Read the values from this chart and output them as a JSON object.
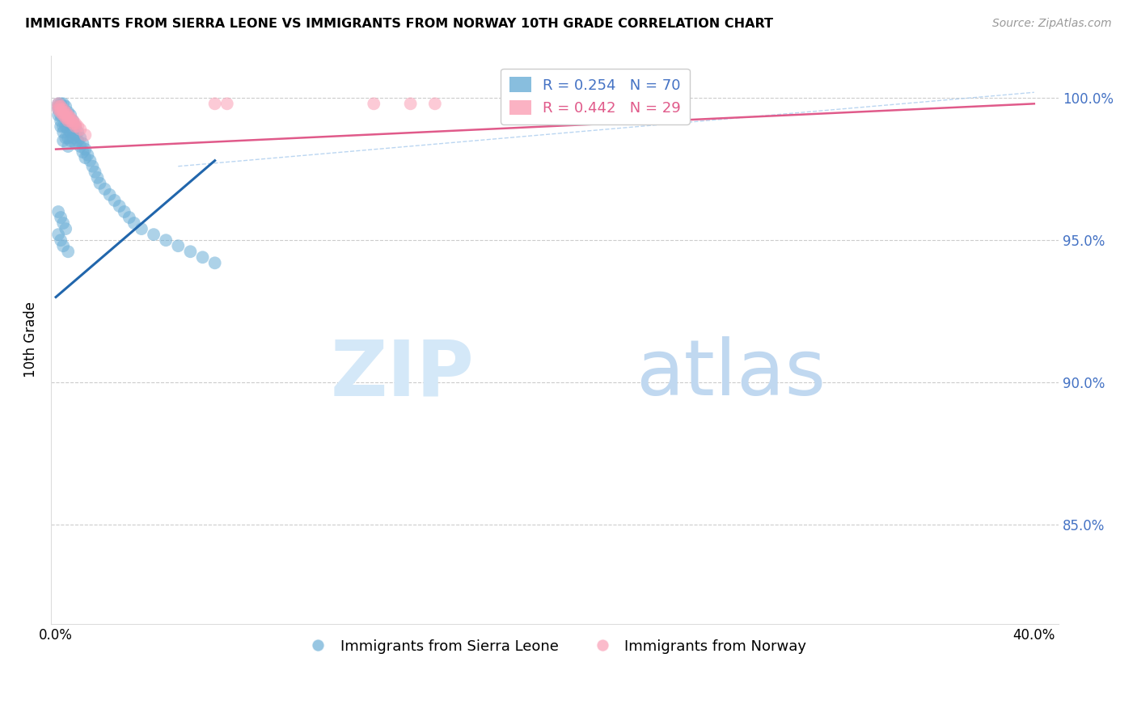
{
  "title": "IMMIGRANTS FROM SIERRA LEONE VS IMMIGRANTS FROM NORWAY 10TH GRADE CORRELATION CHART",
  "source": "Source: ZipAtlas.com",
  "ylabel": "10th Grade",
  "blue_color": "#6baed6",
  "pink_color": "#fa9fb5",
  "blue_line_color": "#2166ac",
  "pink_line_color": "#e05a8a",
  "legend_r1": "R = 0.254",
  "legend_n1": "N = 70",
  "legend_r2": "R = 0.442",
  "legend_n2": "N = 29",
  "xlim_min": -0.002,
  "xlim_max": 0.41,
  "ylim_min": 0.815,
  "ylim_max": 1.015,
  "yticks": [
    0.85,
    0.9,
    0.95,
    1.0
  ],
  "ytick_labels_right": [
    "85.0%",
    "90.0%",
    "95.0%",
    "100.0%"
  ],
  "xtick_positions": [
    0.0,
    0.05,
    0.1,
    0.15,
    0.2,
    0.25,
    0.3,
    0.35,
    0.4
  ],
  "sierra_leone_x": [
    0.001,
    0.001,
    0.001,
    0.001,
    0.002,
    0.002,
    0.002,
    0.002,
    0.002,
    0.003,
    0.003,
    0.003,
    0.003,
    0.003,
    0.003,
    0.004,
    0.004,
    0.004,
    0.004,
    0.005,
    0.005,
    0.005,
    0.005,
    0.005,
    0.006,
    0.006,
    0.006,
    0.006,
    0.007,
    0.007,
    0.007,
    0.008,
    0.008,
    0.008,
    0.009,
    0.009,
    0.01,
    0.01,
    0.011,
    0.011,
    0.012,
    0.012,
    0.013,
    0.014,
    0.015,
    0.016,
    0.017,
    0.018,
    0.02,
    0.022,
    0.024,
    0.026,
    0.028,
    0.03,
    0.032,
    0.035,
    0.04,
    0.045,
    0.05,
    0.055,
    0.06,
    0.065,
    0.001,
    0.002,
    0.003,
    0.004,
    0.001,
    0.002,
    0.003,
    0.005
  ],
  "sierra_leone_y": [
    0.998,
    0.997,
    0.996,
    0.994,
    0.998,
    0.996,
    0.994,
    0.992,
    0.99,
    0.998,
    0.996,
    0.994,
    0.99,
    0.988,
    0.985,
    0.997,
    0.993,
    0.99,
    0.986,
    0.995,
    0.992,
    0.989,
    0.986,
    0.983,
    0.994,
    0.991,
    0.988,
    0.985,
    0.992,
    0.989,
    0.986,
    0.99,
    0.987,
    0.984,
    0.988,
    0.985,
    0.986,
    0.983,
    0.984,
    0.981,
    0.982,
    0.979,
    0.98,
    0.978,
    0.976,
    0.974,
    0.972,
    0.97,
    0.968,
    0.966,
    0.964,
    0.962,
    0.96,
    0.958,
    0.956,
    0.954,
    0.952,
    0.95,
    0.948,
    0.946,
    0.944,
    0.942,
    0.96,
    0.958,
    0.956,
    0.954,
    0.952,
    0.95,
    0.948,
    0.946
  ],
  "norway_x": [
    0.001,
    0.001,
    0.001,
    0.002,
    0.002,
    0.002,
    0.003,
    0.003,
    0.003,
    0.004,
    0.004,
    0.004,
    0.005,
    0.005,
    0.005,
    0.006,
    0.006,
    0.007,
    0.007,
    0.008,
    0.008,
    0.009,
    0.01,
    0.012,
    0.065,
    0.07,
    0.13,
    0.145,
    0.155
  ],
  "norway_y": [
    0.998,
    0.997,
    0.996,
    0.997,
    0.996,
    0.995,
    0.996,
    0.995,
    0.994,
    0.995,
    0.994,
    0.993,
    0.994,
    0.993,
    0.992,
    0.993,
    0.992,
    0.992,
    0.991,
    0.991,
    0.99,
    0.99,
    0.989,
    0.987,
    0.998,
    0.998,
    0.998,
    0.998,
    0.998
  ],
  "sl_trendline_x": [
    0.0,
    0.065
  ],
  "sl_trendline_y": [
    0.93,
    0.978
  ],
  "no_trendline_x": [
    0.0,
    0.4
  ],
  "no_trendline_y": [
    0.982,
    0.998
  ],
  "dashed_line_x": [
    0.05,
    0.4
  ],
  "dashed_line_y": [
    0.976,
    1.002
  ]
}
